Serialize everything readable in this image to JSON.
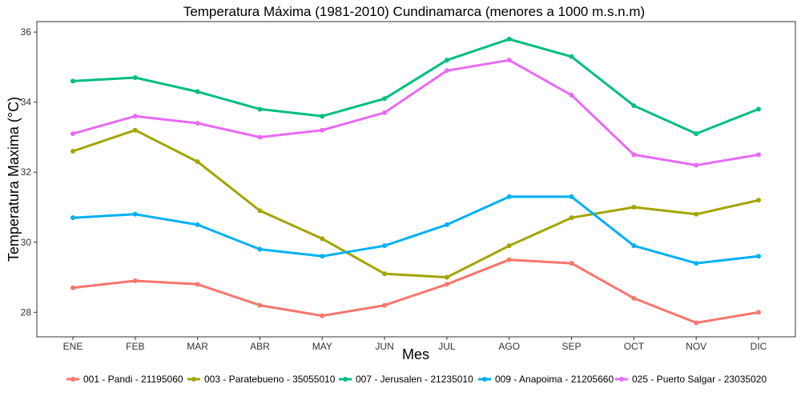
{
  "chart_data": {
    "type": "line",
    "title": "Temperatura Máxima (1981-2010) Cundinamarca (menores a 1000 m.s.n.m)",
    "xlabel": "Mes",
    "ylabel": "Temperatura Maxima (°C)",
    "categories": [
      "ENE",
      "FEB",
      "MAR",
      "ABR",
      "MAY",
      "JUN",
      "JUL",
      "AGO",
      "SEP",
      "OCT",
      "NOV",
      "DIC"
    ],
    "ylim": [
      27.3,
      36.3
    ],
    "yticks": [
      28,
      30,
      32,
      34,
      36
    ],
    "grid": false,
    "legend_position": "bottom",
    "series": [
      {
        "name": "001 - Pandi - 21195060",
        "color": "#F8766D",
        "values": [
          28.7,
          28.9,
          28.8,
          28.2,
          27.9,
          28.2,
          28.8,
          29.5,
          29.4,
          28.4,
          27.7,
          28.0
        ]
      },
      {
        "name": "003 - Paratebueno - 35055010",
        "color": "#A3A500",
        "values": [
          32.6,
          33.2,
          32.3,
          30.9,
          30.1,
          29.1,
          29.0,
          29.9,
          30.7,
          31.0,
          30.8,
          31.2
        ]
      },
      {
        "name": "007 - Jerusalen - 21235010",
        "color": "#00BF7D",
        "values": [
          34.6,
          34.7,
          34.3,
          33.8,
          33.6,
          34.1,
          35.2,
          35.8,
          35.3,
          33.9,
          33.1,
          33.8
        ]
      },
      {
        "name": "009 - Anapoima - 21205660",
        "color": "#00B0F6",
        "values": [
          30.7,
          30.8,
          30.5,
          29.8,
          29.6,
          29.9,
          30.5,
          31.3,
          31.3,
          29.9,
          29.4,
          29.6
        ]
      },
      {
        "name": "025 - Puerto Salgar - 23035020",
        "color": "#E76BF3",
        "values": [
          33.1,
          33.6,
          33.4,
          33.0,
          33.2,
          33.7,
          34.9,
          35.2,
          34.2,
          32.5,
          32.2,
          32.5
        ]
      }
    ]
  }
}
